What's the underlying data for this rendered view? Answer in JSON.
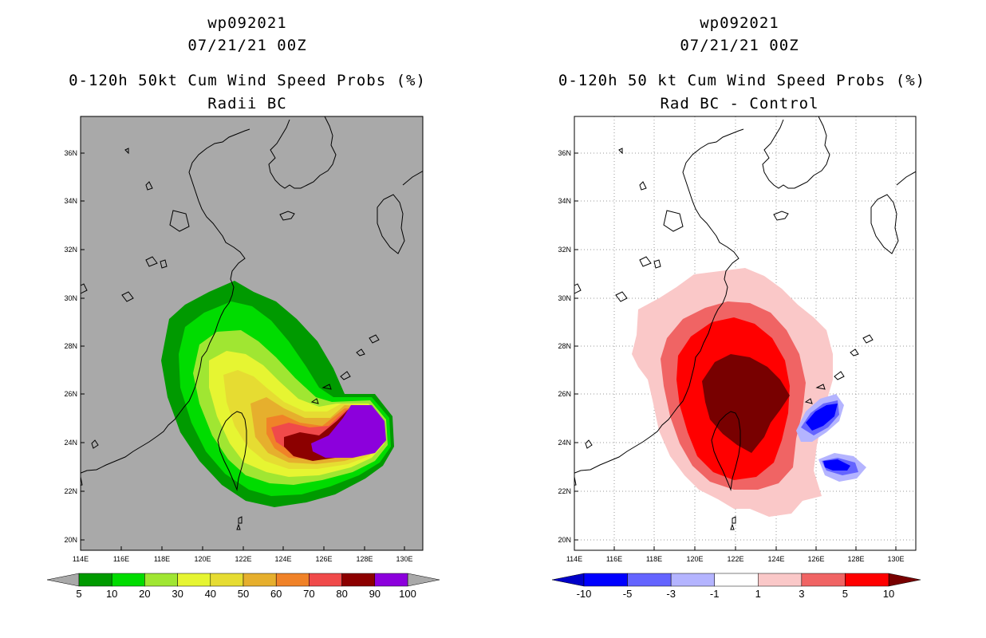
{
  "left": {
    "storm_id": "wp092021",
    "datetime": "07/21/21 00Z",
    "title": "0-120h 50kt Cum Wind Speed Probs (%)",
    "subtitle": "Radii BC",
    "background": "#a9a9a9",
    "lat_labels": [
      "36N",
      "34N",
      "32N",
      "30N",
      "28N",
      "26N",
      "24N",
      "22N",
      "20N"
    ],
    "lon_labels": [
      "114E",
      "116E",
      "118E",
      "120E",
      "122E",
      "124E",
      "126E",
      "128E",
      "130E"
    ],
    "colorbar": {
      "labels": [
        "5",
        "10",
        "20",
        "30",
        "40",
        "50",
        "60",
        "70",
        "80",
        "90",
        "100"
      ],
      "colors": [
        "#009a00",
        "#00dc00",
        "#a0e632",
        "#e6f532",
        "#e6dc32",
        "#e6af2d",
        "#f08228",
        "#f04a4a",
        "#8c0000",
        "#8c00dc"
      ]
    }
  },
  "right": {
    "storm_id": "wp092021",
    "datetime": "07/21/21 00Z",
    "title": "0-120h 50 kt Cum Wind Speed Probs (%)",
    "subtitle": "Rad BC - Control",
    "background": "#ffffff",
    "lat_labels": [
      "36N",
      "34N",
      "32N",
      "30N",
      "28N",
      "26N",
      "24N",
      "22N",
      "20N"
    ],
    "lon_labels": [
      "114E",
      "116E",
      "118E",
      "120E",
      "122E",
      "124E",
      "126E",
      "128E",
      "130E"
    ],
    "colorbar": {
      "labels": [
        "-10",
        "-5",
        "-3",
        "-1",
        "1",
        "3",
        "5",
        "10"
      ],
      "colors": [
        "#0000c8",
        "#0000ff",
        "#6464ff",
        "#b4b4ff",
        "#ffffff",
        "#fac8c8",
        "#f06464",
        "#ff0000",
        "#780000"
      ]
    }
  }
}
